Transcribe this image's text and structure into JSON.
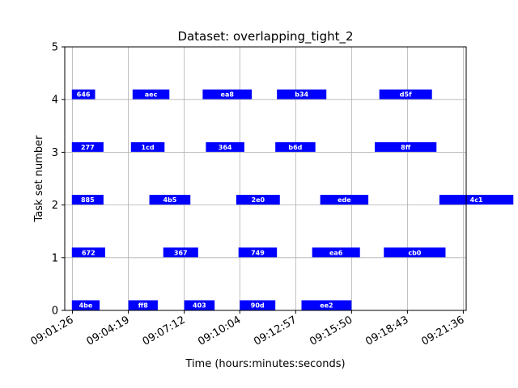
{
  "chart_data": {
    "type": "gantt",
    "title": "Dataset: overlapping_tight_2",
    "xlabel": "Time (hours:minutes:seconds)",
    "ylabel": "Task set number",
    "ylim": [
      0,
      5
    ],
    "yticks": [
      0,
      1,
      2,
      3,
      4,
      5
    ],
    "xlim": [
      "09:01:02",
      "09:21:45"
    ],
    "xticks": [
      "09:01:26",
      "09:04:19",
      "09:07:12",
      "09:10:04",
      "09:12:57",
      "09:15:50",
      "09:18:43",
      "09:21:36"
    ],
    "grid": true,
    "bar_color": "#0000ff",
    "tasks": [
      {
        "row": 4,
        "label": "646",
        "start": "09:01:24",
        "end": "09:02:36"
      },
      {
        "row": 4,
        "label": "aec",
        "start": "09:04:32",
        "end": "09:06:26"
      },
      {
        "row": 4,
        "label": "ea8",
        "start": "09:08:09",
        "end": "09:10:41"
      },
      {
        "row": 4,
        "label": "b34",
        "start": "09:11:59",
        "end": "09:14:32"
      },
      {
        "row": 4,
        "label": "d5f",
        "start": "09:17:16",
        "end": "09:19:59"
      },
      {
        "row": 3,
        "label": "277",
        "start": "09:01:24",
        "end": "09:03:02"
      },
      {
        "row": 3,
        "label": "1cd",
        "start": "09:04:27",
        "end": "09:06:11"
      },
      {
        "row": 3,
        "label": "364",
        "start": "09:08:19",
        "end": "09:10:18"
      },
      {
        "row": 3,
        "label": "b6d",
        "start": "09:11:54",
        "end": "09:13:58"
      },
      {
        "row": 3,
        "label": "8ff",
        "start": "09:17:02",
        "end": "09:20:13"
      },
      {
        "row": 2,
        "label": "885",
        "start": "09:01:24",
        "end": "09:03:02"
      },
      {
        "row": 2,
        "label": "4b5",
        "start": "09:05:24",
        "end": "09:07:31"
      },
      {
        "row": 2,
        "label": "2e0",
        "start": "09:09:53",
        "end": "09:12:08"
      },
      {
        "row": 2,
        "label": "ede",
        "start": "09:14:13",
        "end": "09:16:42"
      },
      {
        "row": 2,
        "label": "4c1",
        "start": "09:20:22",
        "end": "09:24:11"
      },
      {
        "row": 1,
        "label": "672",
        "start": "09:01:24",
        "end": "09:03:07"
      },
      {
        "row": 1,
        "label": "367",
        "start": "09:06:07",
        "end": "09:07:55"
      },
      {
        "row": 1,
        "label": "749",
        "start": "09:10:00",
        "end": "09:11:59"
      },
      {
        "row": 1,
        "label": "ea6",
        "start": "09:13:48",
        "end": "09:16:16"
      },
      {
        "row": 1,
        "label": "cb0",
        "start": "09:17:30",
        "end": "09:20:41"
      },
      {
        "row": 0,
        "label": "4be",
        "start": "09:01:24",
        "end": "09:02:50"
      },
      {
        "row": 0,
        "label": "ff8",
        "start": "09:04:19",
        "end": "09:05:50"
      },
      {
        "row": 0,
        "label": "403",
        "start": "09:07:12",
        "end": "09:08:46"
      },
      {
        "row": 0,
        "label": "90d",
        "start": "09:10:04",
        "end": "09:11:54"
      },
      {
        "row": 0,
        "label": "ee2",
        "start": "09:13:15",
        "end": "09:15:50"
      }
    ]
  }
}
